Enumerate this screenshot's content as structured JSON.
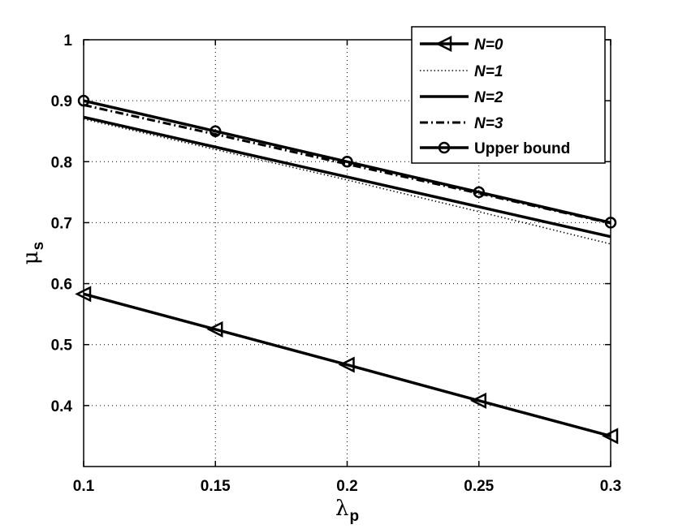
{
  "chart_data": {
    "type": "line",
    "xlabel": {
      "symbol": "λ",
      "subscript": "p"
    },
    "ylabel": {
      "symbol": "μ",
      "subscript": "s"
    },
    "xlim": [
      0.1,
      0.3
    ],
    "ylim": [
      0.3,
      1.0
    ],
    "xticks": [
      0.1,
      0.15,
      0.2,
      0.25,
      0.3
    ],
    "xtick_labels": [
      "0.1",
      "0.15",
      "0.2",
      "0.25",
      "0.3"
    ],
    "yticks": [
      0.4,
      0.5,
      0.6,
      0.7,
      0.8,
      0.9,
      1.0
    ],
    "ytick_labels": [
      "0.4",
      "0.5",
      "0.6",
      "0.7",
      "0.8",
      "0.9",
      "1"
    ],
    "grid": true,
    "legend_position": "top-right",
    "series": [
      {
        "name": "N=0",
        "style": "solid",
        "marker": "triangle-left",
        "x": [
          0.1,
          0.15,
          0.2,
          0.25,
          0.3
        ],
        "y": [
          0.583,
          0.525,
          0.467,
          0.408,
          0.35
        ]
      },
      {
        "name": "N=1",
        "style": "dotted",
        "marker": "none",
        "x": [
          0.1,
          0.15,
          0.2,
          0.25,
          0.3
        ],
        "y": [
          0.87,
          0.82,
          0.77,
          0.718,
          0.665
        ]
      },
      {
        "name": "N=2",
        "style": "solid",
        "marker": "none",
        "x": [
          0.1,
          0.15,
          0.2,
          0.25,
          0.3
        ],
        "y": [
          0.873,
          0.824,
          0.775,
          0.726,
          0.677
        ]
      },
      {
        "name": "N=3",
        "style": "dashdot",
        "marker": "none",
        "x": [
          0.1,
          0.15,
          0.2,
          0.25,
          0.3
        ],
        "y": [
          0.893,
          0.845,
          0.796,
          0.748,
          0.699
        ]
      },
      {
        "name": "Upper bound",
        "style": "solid",
        "marker": "circle",
        "x": [
          0.1,
          0.15,
          0.2,
          0.25,
          0.3
        ],
        "y": [
          0.9,
          0.85,
          0.8,
          0.75,
          0.7
        ]
      }
    ]
  }
}
